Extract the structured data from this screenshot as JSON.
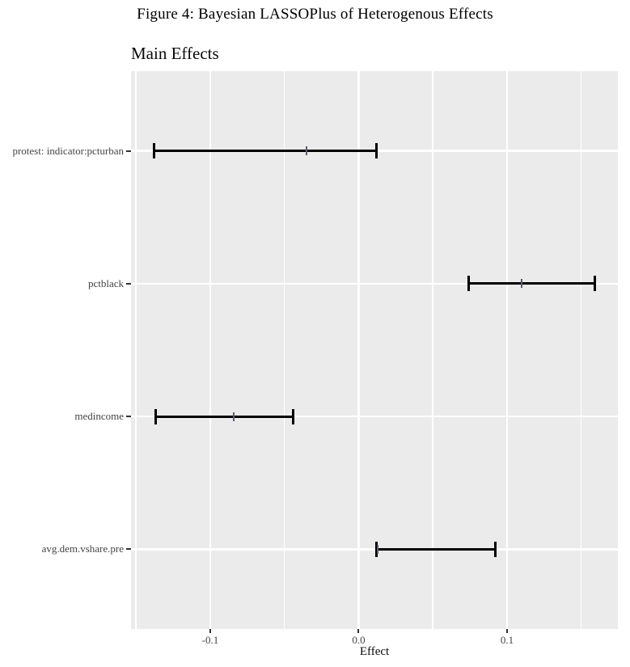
{
  "figure": {
    "title": "Figure 4: Bayesian LASSOPlus of Heterogenous Effects"
  },
  "chart_data": {
    "type": "errorbar",
    "orientation": "horizontal",
    "title": "Main Effects",
    "xlabel": "Effect",
    "ylabel": "",
    "categories": [
      "protest: indicator:pcturban",
      "pctblack",
      "medincome",
      "avg.dem.vshare.pre"
    ],
    "series": [
      {
        "name": "estimate",
        "values": [
          -0.035,
          0.11,
          -0.084,
          0.013
        ]
      },
      {
        "name": "ci_lower",
        "values": [
          -0.138,
          0.074,
          -0.137,
          0.012
        ]
      },
      {
        "name": "ci_upper",
        "values": [
          0.012,
          0.159,
          -0.044,
          0.092
        ]
      }
    ],
    "xlim": [
      -0.1534,
      0.1747
    ],
    "x_ticks": [
      -0.1,
      0.0,
      0.1
    ],
    "x_tick_labels": [
      "-0.1",
      "0.0",
      "0.1"
    ],
    "x_minor_ticks": [
      -0.15,
      -0.05,
      0.05,
      0.15
    ],
    "grid": {
      "major": true,
      "minor": true,
      "horizontal_rows": true
    },
    "legend": "none",
    "colors": {
      "panel_bg": "#ebebeb",
      "gridline": "#ffffff",
      "errorbar": "#000000",
      "estimate_tick": "#5c5b72",
      "axis_text": "#454545",
      "tick_mark": "#333333",
      "title_text": "#000000"
    }
  }
}
